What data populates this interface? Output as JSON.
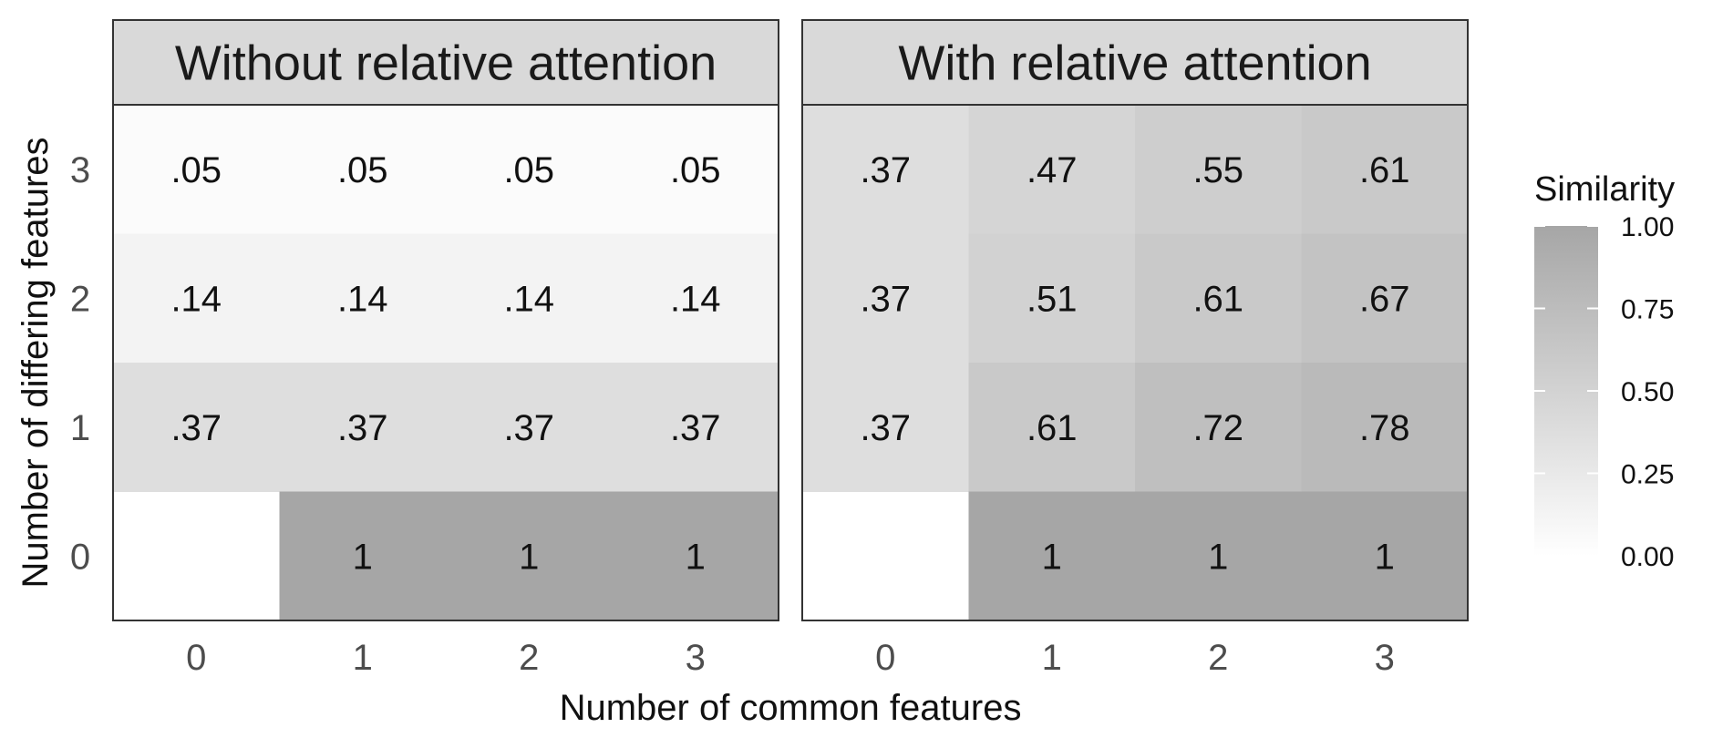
{
  "chart_data": {
    "type": "heatmap",
    "xlabel": "Number of common features",
    "ylabel": "Number of differing features",
    "x_categories": [
      "0",
      "1",
      "2",
      "3"
    ],
    "y_categories": [
      "0",
      "1",
      "2",
      "3"
    ],
    "fill_range": [
      0,
      1
    ],
    "panels": [
      {
        "title": "Without relative attention",
        "cells": [
          {
            "x": 0,
            "y": 3,
            "value": 0.05,
            "label": ".05"
          },
          {
            "x": 1,
            "y": 3,
            "value": 0.05,
            "label": ".05"
          },
          {
            "x": 2,
            "y": 3,
            "value": 0.05,
            "label": ".05"
          },
          {
            "x": 3,
            "y": 3,
            "value": 0.05,
            "label": ".05"
          },
          {
            "x": 0,
            "y": 2,
            "value": 0.14,
            "label": ".14"
          },
          {
            "x": 1,
            "y": 2,
            "value": 0.14,
            "label": ".14"
          },
          {
            "x": 2,
            "y": 2,
            "value": 0.14,
            "label": ".14"
          },
          {
            "x": 3,
            "y": 2,
            "value": 0.14,
            "label": ".14"
          },
          {
            "x": 0,
            "y": 1,
            "value": 0.37,
            "label": ".37"
          },
          {
            "x": 1,
            "y": 1,
            "value": 0.37,
            "label": ".37"
          },
          {
            "x": 2,
            "y": 1,
            "value": 0.37,
            "label": ".37"
          },
          {
            "x": 3,
            "y": 1,
            "value": 0.37,
            "label": ".37"
          },
          {
            "x": 1,
            "y": 0,
            "value": 1.0,
            "label": "1"
          },
          {
            "x": 2,
            "y": 0,
            "value": 1.0,
            "label": "1"
          },
          {
            "x": 3,
            "y": 0,
            "value": 1.0,
            "label": "1"
          }
        ]
      },
      {
        "title": "With relative attention",
        "cells": [
          {
            "x": 0,
            "y": 3,
            "value": 0.37,
            "label": ".37"
          },
          {
            "x": 1,
            "y": 3,
            "value": 0.47,
            "label": ".47"
          },
          {
            "x": 2,
            "y": 3,
            "value": 0.55,
            "label": ".55"
          },
          {
            "x": 3,
            "y": 3,
            "value": 0.61,
            "label": ".61"
          },
          {
            "x": 0,
            "y": 2,
            "value": 0.37,
            "label": ".37"
          },
          {
            "x": 1,
            "y": 2,
            "value": 0.51,
            "label": ".51"
          },
          {
            "x": 2,
            "y": 2,
            "value": 0.61,
            "label": ".61"
          },
          {
            "x": 3,
            "y": 2,
            "value": 0.67,
            "label": ".67"
          },
          {
            "x": 0,
            "y": 1,
            "value": 0.37,
            "label": ".37"
          },
          {
            "x": 1,
            "y": 1,
            "value": 0.61,
            "label": ".61"
          },
          {
            "x": 2,
            "y": 1,
            "value": 0.72,
            "label": ".72"
          },
          {
            "x": 3,
            "y": 1,
            "value": 0.78,
            "label": ".78"
          },
          {
            "x": 1,
            "y": 0,
            "value": 1.0,
            "label": "1"
          },
          {
            "x": 2,
            "y": 0,
            "value": 1.0,
            "label": "1"
          },
          {
            "x": 3,
            "y": 0,
            "value": 1.0,
            "label": "1"
          }
        ]
      }
    ],
    "legend": {
      "title": "Similarity",
      "position": "right",
      "ticks": [
        "0.00",
        "0.25",
        "0.50",
        "0.75",
        "1.00"
      ],
      "tick_values": [
        0,
        0.25,
        0.5,
        0.75,
        1.0
      ],
      "low_color": "#ffffff",
      "high_color": "#a6a6a6"
    },
    "grid": false
  }
}
